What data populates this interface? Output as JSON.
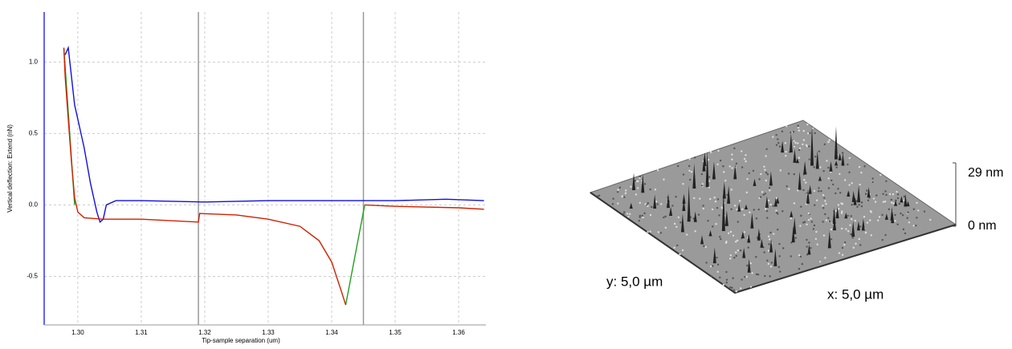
{
  "chart_data": {
    "type": "line",
    "xlabel": "Tip-sample separation (um)",
    "ylabel": "Vertical deflection: Extend (nN)",
    "xlim": [
      1.2947,
      1.3643
    ],
    "ylim": [
      -0.84,
      1.35
    ],
    "xticks": [
      {
        "value": 1.3,
        "label": "1.30"
      },
      1.31,
      1.32,
      1.33,
      1.34,
      1.35,
      1.36
    ],
    "yticks": [
      -0.5,
      {
        "value": 0,
        "label": "0.0"
      },
      0.5,
      {
        "value": 1,
        "label": "1.0"
      }
    ],
    "grid": true,
    "markers": [
      1.319,
      1.345
    ],
    "series": [
      {
        "name": "blue",
        "color": "#1010e0",
        "x": [
          1.298,
          1.2985,
          1.2995,
          1.3,
          1.301,
          1.302,
          1.303,
          1.3035,
          1.304,
          1.3045,
          1.306,
          1.31,
          1.32,
          1.33,
          1.34,
          1.35,
          1.358,
          1.364
        ],
        "values": [
          1.05,
          1.1,
          0.7,
          0.6,
          0.4,
          0.15,
          -0.05,
          -0.12,
          -0.1,
          0.0,
          0.03,
          0.03,
          0.02,
          0.03,
          0.03,
          0.03,
          0.04,
          0.03
        ]
      },
      {
        "name": "red",
        "color": "#d02000",
        "x": [
          1.2978,
          1.298,
          1.2985,
          1.299,
          1.2995,
          1.3,
          1.301,
          1.304,
          1.31,
          1.319,
          1.3192,
          1.325,
          1.33,
          1.335,
          1.338,
          1.34,
          1.3415,
          1.3422,
          1.3437,
          1.3452,
          1.35,
          1.36,
          1.364
        ],
        "values": [
          1.1,
          0.9,
          0.6,
          0.3,
          0.05,
          -0.05,
          -0.09,
          -0.1,
          -0.1,
          -0.12,
          -0.06,
          -0.07,
          -0.1,
          -0.15,
          -0.25,
          -0.4,
          -0.6,
          -0.7,
          null,
          0.0,
          -0.01,
          -0.02,
          -0.03
        ]
      },
      {
        "name": "green",
        "color": "#20a020",
        "x": [
          1.2978,
          1.2995,
          1.3,
          1.3422,
          1.3452
        ],
        "values": [
          1.1,
          0.0,
          null,
          -0.7,
          0.0
        ]
      }
    ]
  },
  "image": {
    "height_max": "29 nm",
    "height_min": "0 nm",
    "y_size": "y: 5,0 µm",
    "x_size": "x: 5,0 µm"
  }
}
